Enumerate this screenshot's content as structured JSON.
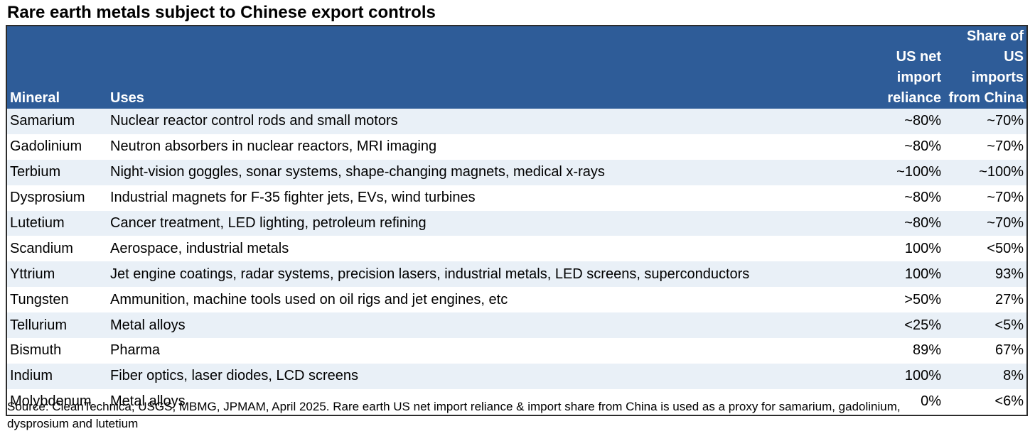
{
  "title": "Rare earth metals subject to Chinese export controls",
  "header": {
    "mineral": "Mineral",
    "uses": "Uses",
    "reliance_line1": "US net",
    "reliance_line2": "import",
    "reliance_line3": "reliance",
    "share_line1": "Share of US",
    "share_line2": "imports",
    "share_line3": "from China"
  },
  "rows": [
    {
      "mineral": "Samarium",
      "uses": "Nuclear reactor control rods and small motors",
      "reliance": "~80%",
      "share": "~70%"
    },
    {
      "mineral": "Gadolinium",
      "uses": "Neutron absorbers in nuclear reactors, MRI imaging",
      "reliance": "~80%",
      "share": "~70%"
    },
    {
      "mineral": "Terbium",
      "uses": "Night-vision goggles, sonar systems, shape-changing magnets, medical x-rays",
      "reliance": "~100%",
      "share": "~100%"
    },
    {
      "mineral": "Dysprosium",
      "uses": "Industrial magnets for F-35 fighter jets, EVs, wind turbines",
      "reliance": "~80%",
      "share": "~70%"
    },
    {
      "mineral": "Lutetium",
      "uses": "Cancer treatment, LED lighting, petroleum refining",
      "reliance": "~80%",
      "share": "~70%"
    },
    {
      "mineral": "Scandium",
      "uses": "Aerospace, industrial metals",
      "reliance": "100%",
      "share": "<50%"
    },
    {
      "mineral": "Yttrium",
      "uses": "Jet engine coatings, radar systems, precision lasers, industrial metals, LED screens, superconductors",
      "reliance": "100%",
      "share": "93%"
    },
    {
      "mineral": "Tungsten",
      "uses": "Ammunition, machine tools used on oil rigs and jet engines, etc",
      "reliance": ">50%",
      "share": "27%"
    },
    {
      "mineral": "Tellurium",
      "uses": "Metal alloys",
      "reliance": "<25%",
      "share": "<5%"
    },
    {
      "mineral": "Bismuth",
      "uses": "Pharma",
      "reliance": "89%",
      "share": "67%"
    },
    {
      "mineral": "Indium",
      "uses": "Fiber optics, laser diodes, LCD screens",
      "reliance": "100%",
      "share": "8%"
    },
    {
      "mineral": "Molybdenum",
      "uses": "Metal alloys",
      "reliance": "0%",
      "share": "<6%"
    }
  ],
  "source_line1": "Source: CleanTechnica, USGS, MBMG, JPMAM, April 2025. Rare earth US net import reliance & import share from China is used as a proxy for samarium, gadolinium,",
  "source_line2": "dysprosium and lutetium",
  "colors": {
    "header_bg": "#2e5c98",
    "band_row": "#e9f0f7"
  }
}
